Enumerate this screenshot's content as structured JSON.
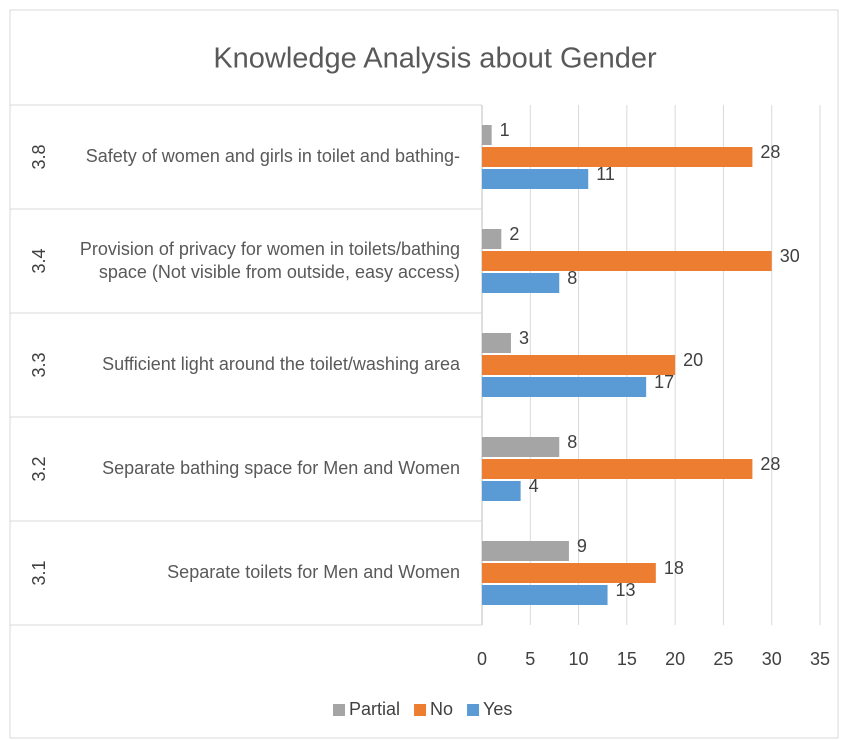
{
  "chart_data": {
    "type": "hbar-grouped",
    "title": "Knowledge Analysis about Gender",
    "groups": [
      "3.1",
      "3.2",
      "3.3",
      "3.4",
      "3.8"
    ],
    "categories": [
      "Separate toilets for Men and Women",
      "Separate bathing space for Men and Women",
      "Sufficient light around the toilet/washing area",
      "Provision of privacy for women in toilets/bathing space (Not visible from outside, easy access)",
      "Safety of women and girls  in toilet and bathing-"
    ],
    "series": [
      {
        "name": "Partial",
        "color": "#a5a5a5",
        "values": [
          9,
          8,
          3,
          2,
          1
        ]
      },
      {
        "name": "No",
        "color": "#ed7d31",
        "values": [
          18,
          28,
          20,
          30,
          28
        ]
      },
      {
        "name": "Yes",
        "color": "#5b9bd5",
        "values": [
          13,
          4,
          17,
          8,
          11
        ]
      }
    ],
    "xlim": [
      0,
      35
    ],
    "xticks": [
      0,
      5,
      10,
      15,
      20,
      25,
      30,
      35
    ],
    "grid": true,
    "legend": "bottom"
  }
}
